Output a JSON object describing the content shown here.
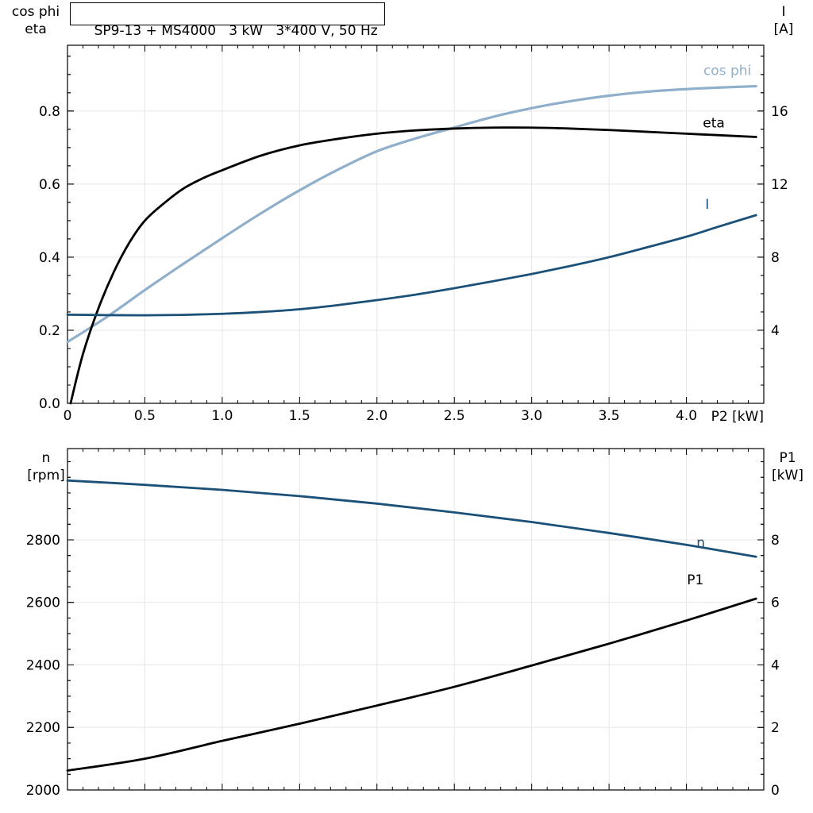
{
  "title_box": {
    "text": "SP9-13 + MS4000   3 kW   3*400 V, 50 Hz"
  },
  "colors": {
    "light_blue": "#8fafca",
    "dark_blue": "#1b5178",
    "black": "#000000",
    "grid": "#e7e7e7"
  },
  "chart_data": [
    {
      "id": "motor-performance",
      "type": "line",
      "title": "SP9-13 + MS4000   3 kW   3*400 V, 50 Hz",
      "x_axis": {
        "label": "P2 [kW]",
        "min": 0,
        "max": 4.5,
        "major_ticks": [
          0,
          0.5,
          1,
          1.5,
          2,
          2.5,
          3,
          3.5,
          4
        ],
        "tick_labels": [
          "0",
          "0.5",
          "1.0",
          "1.5",
          "2.0",
          "2.5",
          "3.0",
          "3.5",
          "4.0"
        ],
        "minor_step": 0.1
      },
      "y_left": {
        "label_lines": [
          "cos phi",
          "eta"
        ],
        "min": 0,
        "max": 0.98,
        "major_ticks": [
          0,
          0.2,
          0.4,
          0.6,
          0.8
        ],
        "tick_labels": [
          "0.0",
          "0.2",
          "0.4",
          "0.6",
          "0.8"
        ],
        "minor_step": 0.05
      },
      "y_right": {
        "label_lines": [
          "I",
          "[A]"
        ],
        "min": 0,
        "max": 19.6,
        "major_ticks": [
          4,
          8,
          12,
          16
        ],
        "tick_labels": [
          "4",
          "8",
          "12",
          "16"
        ],
        "minor_step": 1
      },
      "series": [
        {
          "name": "cos phi",
          "axis": "left",
          "color": "#8fafca",
          "width": 3.2,
          "x": [
            0,
            0.25,
            0.5,
            0.75,
            1.0,
            1.25,
            1.5,
            1.75,
            2.0,
            2.25,
            2.5,
            2.75,
            3.0,
            3.25,
            3.5,
            3.75,
            4.0,
            4.2,
            4.45
          ],
          "y": [
            0.168,
            0.235,
            0.31,
            0.382,
            0.452,
            0.52,
            0.583,
            0.64,
            0.69,
            0.725,
            0.755,
            0.784,
            0.808,
            0.827,
            0.842,
            0.853,
            0.86,
            0.864,
            0.868
          ]
        },
        {
          "name": "eta",
          "axis": "left",
          "color": "#000000",
          "width": 2.8,
          "x": [
            0.02,
            0.1,
            0.2,
            0.3,
            0.4,
            0.5,
            0.625,
            0.75,
            0.875,
            1.0,
            1.25,
            1.5,
            1.75,
            2.0,
            2.25,
            2.5,
            2.75,
            3.0,
            3.25,
            3.5,
            3.75,
            4.0,
            4.2,
            4.45
          ],
          "y": [
            0,
            0.135,
            0.26,
            0.36,
            0.44,
            0.5,
            0.548,
            0.588,
            0.616,
            0.638,
            0.678,
            0.706,
            0.724,
            0.738,
            0.747,
            0.752,
            0.7545,
            0.7545,
            0.752,
            0.748,
            0.743,
            0.738,
            0.734,
            0.729
          ]
        },
        {
          "name": "I",
          "axis": "right",
          "color": "#1b5178",
          "width": 2.8,
          "x": [
            0,
            0.25,
            0.5,
            0.75,
            1.0,
            1.25,
            1.5,
            1.75,
            2.0,
            2.25,
            2.5,
            2.75,
            3.0,
            3.25,
            3.5,
            3.75,
            4.0,
            4.2,
            4.45
          ],
          "y": [
            4.85,
            4.83,
            4.82,
            4.84,
            4.9,
            5.0,
            5.15,
            5.38,
            5.65,
            5.95,
            6.3,
            6.68,
            7.08,
            7.52,
            8.0,
            8.55,
            9.12,
            9.65,
            10.3
          ]
        }
      ]
    },
    {
      "id": "speed-and-input-power",
      "type": "line",
      "title": "",
      "x_axis": {
        "label": "",
        "min": 0,
        "max": 4.5,
        "major_ticks": [
          0,
          0.5,
          1,
          1.5,
          2,
          2.5,
          3,
          3.5,
          4
        ],
        "tick_labels": [],
        "minor_step": 0.1
      },
      "y_left": {
        "label_lines": [
          "n",
          "[rpm]"
        ],
        "min": 2000,
        "max": 3092,
        "major_ticks": [
          2000,
          2200,
          2400,
          2600,
          2800
        ],
        "tick_labels": [
          "2000",
          "2200",
          "2400",
          "2600",
          "2800"
        ],
        "minor_step": 50
      },
      "y_right": {
        "label_lines": [
          "P1",
          "[kW]"
        ],
        "min": 0,
        "max": 10.92,
        "major_ticks": [
          0,
          2,
          4,
          6,
          8
        ],
        "tick_labels": [
          "0",
          "2",
          "4",
          "6",
          "8"
        ],
        "minor_step": 0.5
      },
      "series": [
        {
          "name": "n",
          "axis": "left",
          "color": "#1b5178",
          "width": 2.8,
          "x": [
            0,
            0.5,
            1.0,
            1.5,
            2.0,
            2.5,
            3.0,
            3.5,
            4.0,
            4.45
          ],
          "y": [
            2990,
            2976,
            2960,
            2940,
            2916,
            2888,
            2857,
            2822,
            2784,
            2746
          ]
        },
        {
          "name": "P1",
          "axis": "right",
          "color": "#000000",
          "width": 2.8,
          "x": [
            0,
            0.5,
            1.0,
            1.5,
            2.0,
            2.5,
            3.0,
            3.5,
            4.0,
            4.45
          ],
          "y": [
            0.62,
            1.0,
            1.57,
            2.12,
            2.7,
            3.3,
            3.98,
            4.68,
            5.42,
            6.12
          ]
        }
      ]
    }
  ]
}
